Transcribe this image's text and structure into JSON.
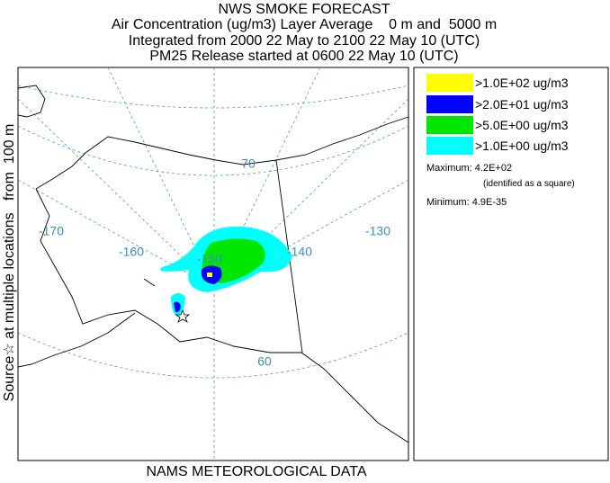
{
  "header": {
    "title": "NWS SMOKE FORECAST",
    "lines": [
      "Air Concentration (ug/m3) Layer Average    0 m and  5000 m",
      "Integrated from 2000 22 May to 2100 22 May 10 (UTC)",
      "PM25 Release started at 0600 22 May 10 (UTC)"
    ]
  },
  "side_label": "Source☆ at multiple locations   from  100 m",
  "footer": "NAMS METEOROLOGICAL DATA",
  "legend": {
    "entries": [
      {
        "label": ">1.0E+02 ug/m3",
        "color": "#ffff00"
      },
      {
        "label": ">2.0E+01 ug/m3",
        "color": "#0000ff"
      },
      {
        "label": ">5.0E+00 ug/m3",
        "color": "#00e600"
      },
      {
        "label": ">1.0E+00 ug/m3",
        "color": "#00ffff"
      }
    ],
    "maximum": "Maximum: 4.2E+02",
    "maximum_note": "(identified as a square)",
    "minimum": "Minimum: 4.9E-35"
  },
  "map": {
    "graticule_labels": [
      "-170",
      "-160",
      "-150",
      "-140",
      "-130",
      "70",
      "60"
    ]
  }
}
